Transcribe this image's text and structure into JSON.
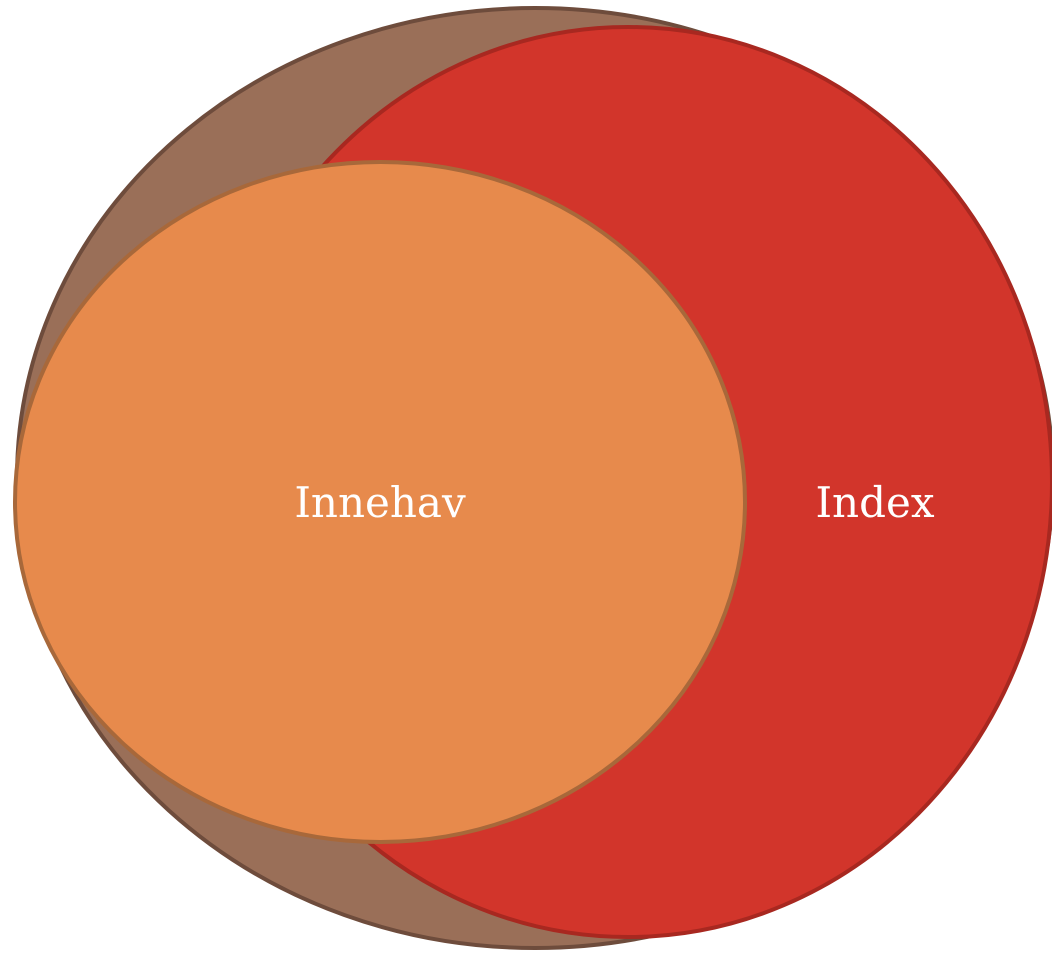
{
  "nodes": [
    {
      "label": "Innehav"
    },
    {
      "label": "Index"
    }
  ]
}
